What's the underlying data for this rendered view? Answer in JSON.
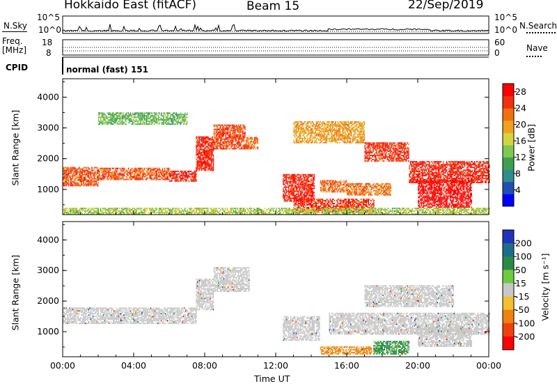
{
  "header": {
    "station": "Hokkaido East (fitACF)",
    "beam": "Beam 15",
    "date": "22/Sep/2019"
  },
  "strips": {
    "nsky_label": "N.Sky",
    "nsky_ticks": [
      "10^5",
      "10^0"
    ],
    "nsearch_label": "N.Search",
    "freq_label": "Freq.",
    "freq_unit": "[MHz]",
    "freq_ticks": [
      "18",
      "8"
    ],
    "nave_label": "Nave",
    "nave_ticks": [
      "60",
      "0"
    ],
    "cpid_label": "CPID",
    "cpid_value": "normal (fast) 151"
  },
  "chart_data": [
    {
      "type": "heatmap",
      "name": "power",
      "ylabel": "Slant Range [km]",
      "xlabel": "",
      "x_ticks": [
        "00:00",
        "04:00",
        "08:00",
        "12:00",
        "16:00",
        "20:00",
        "00:00"
      ],
      "y_ticks": [
        "1000",
        "2000",
        "3000",
        "4000"
      ],
      "xlim_hours": [
        0,
        24
      ],
      "ylim_km": [
        180,
        4600
      ],
      "colorbar": {
        "label": "Power [dB]",
        "ticks": [
          "4",
          "8",
          "12",
          "16",
          "20",
          "24",
          "28"
        ],
        "range": [
          0,
          30
        ],
        "colors": [
          "#0000ff",
          "#1f4fb4",
          "#2f8c8c",
          "#3ca050",
          "#7ec850",
          "#d4d440",
          "#f2a020",
          "#f07010",
          "#f03010",
          "#ff0000"
        ]
      },
      "bands": [
        {
          "t0": 0.0,
          "t1": 2.0,
          "r0": 1100,
          "r1": 1700,
          "value": 24
        },
        {
          "t0": 2.0,
          "t1": 6.0,
          "r0": 1300,
          "r1": 1700,
          "value": 24
        },
        {
          "t0": 6.0,
          "t1": 7.5,
          "r0": 1250,
          "r1": 1600,
          "value": 27
        },
        {
          "t0": 7.5,
          "t1": 8.5,
          "r0": 1600,
          "r1": 2700,
          "value": 27
        },
        {
          "t0": 8.5,
          "t1": 10.3,
          "r0": 2300,
          "r1": 3100,
          "value": 25
        },
        {
          "t0": 10.3,
          "t1": 11.0,
          "r0": 2300,
          "r1": 2700,
          "value": 23
        },
        {
          "t0": 12.4,
          "t1": 14.2,
          "r0": 600,
          "r1": 1500,
          "value": 27
        },
        {
          "t0": 14.5,
          "t1": 16.0,
          "r0": 900,
          "r1": 1300,
          "value": 23
        },
        {
          "t0": 16.0,
          "t1": 18.5,
          "r0": 800,
          "r1": 1200,
          "value": 22
        },
        {
          "t0": 13.0,
          "t1": 17.0,
          "r0": 2500,
          "r1": 3200,
          "value": 20
        },
        {
          "t0": 17.0,
          "t1": 19.5,
          "r0": 1900,
          "r1": 2500,
          "value": 26
        },
        {
          "t0": 19.5,
          "t1": 24.0,
          "r0": 1200,
          "r1": 1900,
          "value": 27
        },
        {
          "t0": 20.0,
          "t1": 23.0,
          "r0": 400,
          "r1": 1300,
          "value": 29
        },
        {
          "t0": 13.0,
          "t1": 17.5,
          "r0": 250,
          "r1": 700,
          "value": 26
        },
        {
          "t0": 0.0,
          "t1": 24.0,
          "r0": 180,
          "r1": 380,
          "value": 15
        },
        {
          "t0": 2.0,
          "t1": 7.0,
          "r0": 3100,
          "r1": 3500,
          "value": 12
        }
      ]
    },
    {
      "type": "heatmap",
      "name": "velocity",
      "ylabel": "Slant Range [km]",
      "xlabel": "Time UT",
      "x_ticks": [
        "00:00",
        "04:00",
        "08:00",
        "12:00",
        "16:00",
        "20:00",
        "00:00"
      ],
      "y_ticks": [
        "1000",
        "2000",
        "3000",
        "4000"
      ],
      "xlim_hours": [
        0,
        24
      ],
      "ylim_km": [
        180,
        4600
      ],
      "colorbar": {
        "label": "Velocity [m s⁻¹]",
        "ticks": [
          "200",
          "100",
          "50",
          "15",
          "-15",
          "-50",
          "-100",
          "-200"
        ],
        "colors": [
          "#2233bb",
          "#1f6e88",
          "#2a8a4a",
          "#6ccc3c",
          "#c8c8c8",
          "#f2c030",
          "#f08010",
          "#f04010",
          "#ff0000"
        ]
      },
      "bands": [
        {
          "t0": 0.0,
          "t1": 7.5,
          "r0": 1250,
          "r1": 1750,
          "value": 0
        },
        {
          "t0": 7.5,
          "t1": 8.5,
          "r0": 1700,
          "r1": 2700,
          "value": 0
        },
        {
          "t0": 8.5,
          "t1": 10.5,
          "r0": 2300,
          "r1": 3100,
          "value": 0
        },
        {
          "t0": 12.4,
          "t1": 14.5,
          "r0": 700,
          "r1": 1500,
          "value": 0
        },
        {
          "t0": 15.0,
          "t1": 24.0,
          "r0": 900,
          "r1": 1600,
          "value": 0
        },
        {
          "t0": 17.0,
          "t1": 22.0,
          "r0": 1800,
          "r1": 2500,
          "value": 0
        },
        {
          "t0": 14.5,
          "t1": 17.5,
          "r0": 250,
          "r1": 500,
          "value": -60
        },
        {
          "t0": 17.5,
          "t1": 19.5,
          "r0": 250,
          "r1": 700,
          "value": 40
        },
        {
          "t0": 20.0,
          "t1": 23.0,
          "r0": 500,
          "r1": 1100,
          "value": 0
        }
      ]
    }
  ]
}
